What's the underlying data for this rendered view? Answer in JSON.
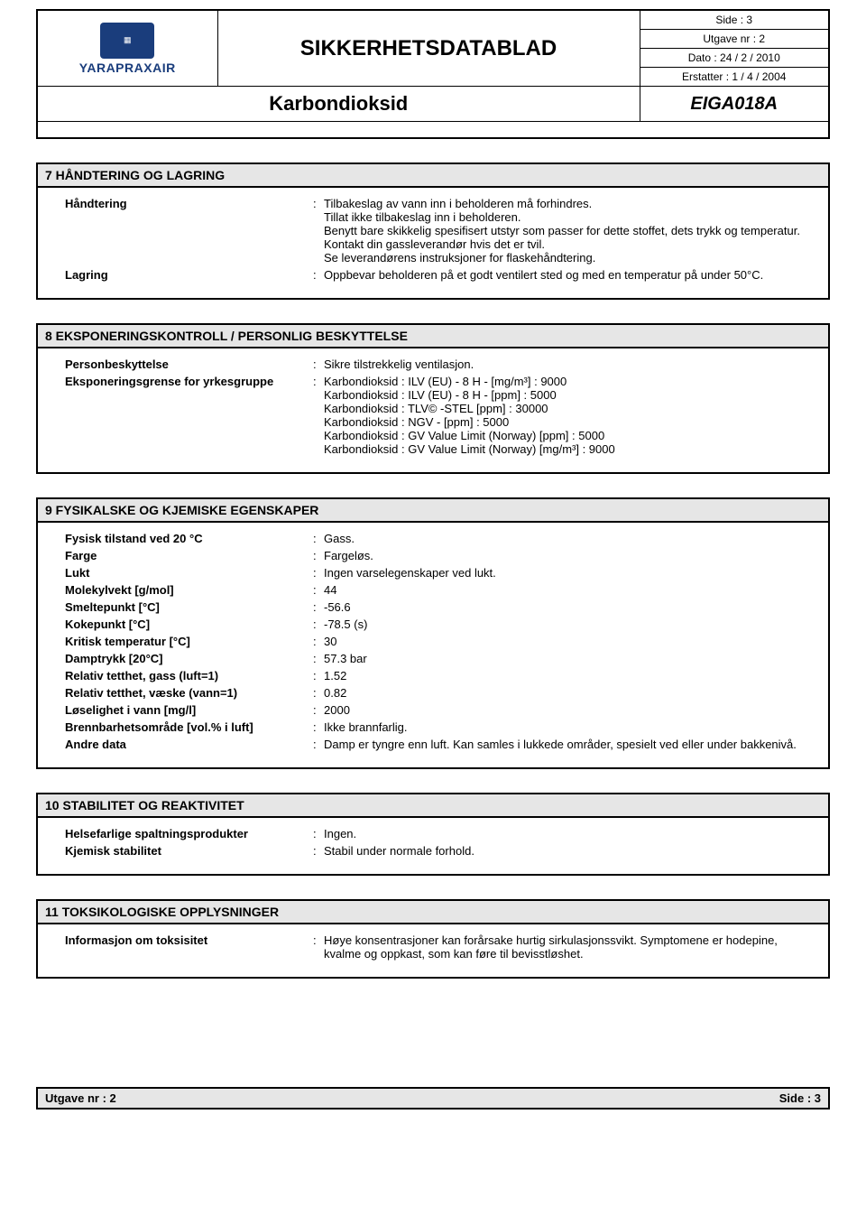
{
  "header": {
    "logo_brand": "YARAPRAXAIR",
    "doc_title": "SIKKERHETSDATABLAD",
    "meta": {
      "page": "Side : 3",
      "edition": "Utgave nr : 2",
      "date": "Dato : 24 / 2 / 2010",
      "replaces": "Erstatter : 1 / 4 / 2004"
    },
    "product_name": "Karbondioksid",
    "product_code": "EIGA018A"
  },
  "section7": {
    "title": "7  HÅNDTERING OG LAGRING",
    "items": [
      {
        "k": "Håndtering",
        "v": "Tilbakeslag av vann inn i beholderen må forhindres.\nTillat ikke tilbakeslag inn i beholderen.\nBenytt bare skikkelig spesifisert utstyr som passer for dette stoffet, dets trykk og temperatur. Kontakt din gassleverandør hvis det er tvil.\nSe leverandørens instruksjoner for flaskehåndtering."
      },
      {
        "k": "Lagring",
        "v": "Oppbevar beholderen på et godt ventilert sted og med en temperatur på under 50°C."
      }
    ]
  },
  "section8": {
    "title": "8  EKSPONERINGSKONTROLL / PERSONLIG BESKYTTELSE",
    "items": [
      {
        "k": "Personbeskyttelse",
        "v": "Sikre tilstrekkelig ventilasjon."
      },
      {
        "k": "Eksponeringsgrense for yrkesgruppe",
        "v": "Karbondioksid : ILV (EU) - 8 H - [mg/m³] : 9000\nKarbondioksid : ILV (EU) - 8 H - [ppm] : 5000\nKarbondioksid : TLV© -STEL [ppm] : 30000\nKarbondioksid : NGV - [ppm] : 5000\nKarbondioksid : GV Value Limit (Norway) [ppm] : 5000\nKarbondioksid : GV Value Limit (Norway) [mg/m³] : 9000"
      }
    ]
  },
  "section9": {
    "title": "9  FYSIKALSKE OG KJEMISKE EGENSKAPER",
    "items": [
      {
        "k": "Fysisk tilstand ved 20 °C",
        "v": "Gass."
      },
      {
        "k": "Farge",
        "v": "Fargeløs."
      },
      {
        "k": "Lukt",
        "v": "Ingen varselegenskaper ved lukt."
      },
      {
        "k": "Molekylvekt [g/mol]",
        "v": "44"
      },
      {
        "k": "Smeltepunkt  [°C]",
        "v": "-56.6"
      },
      {
        "k": "Kokepunkt [°C]",
        "v": "-78.5 (s)"
      },
      {
        "k": "Kritisk temperatur [°C]",
        "v": "30"
      },
      {
        "k": "Damptrykk [20°C]",
        "v": "57.3 bar"
      },
      {
        "k": "Relativ tetthet, gass (luft=1)",
        "v": "1.52"
      },
      {
        "k": "Relativ tetthet, væske  (vann=1)",
        "v": "0.82"
      },
      {
        "k": "Løselighet i vann [mg/l]",
        "v": "2000"
      },
      {
        "k": "Brennbarhetsområde [vol.% i luft]",
        "v": "Ikke brannfarlig."
      },
      {
        "k": "Andre data",
        "v": "Damp er tyngre enn luft. Kan samles i lukkede områder, spesielt ved eller under bakkenivå."
      }
    ]
  },
  "section10": {
    "title": "10  STABILITET OG REAKTIVITET",
    "items": [
      {
        "k": "Helsefarlige spaltningsprodukter",
        "v": "Ingen."
      },
      {
        "k": "Kjemisk stabilitet",
        "v": "Stabil under normale forhold."
      }
    ]
  },
  "section11": {
    "title": "11  TOKSIKOLOGISKE OPPLYSNINGER",
    "items": [
      {
        "k": "Informasjon om toksisitet",
        "v": "Høye konsentrasjoner kan forårsake hurtig sirkulasjonssvikt. Symptomene er hodepine, kvalme og oppkast, som kan føre til bevisstløshet."
      }
    ]
  },
  "footer": {
    "left": "Utgave nr : 2",
    "right": "Side : 3"
  }
}
